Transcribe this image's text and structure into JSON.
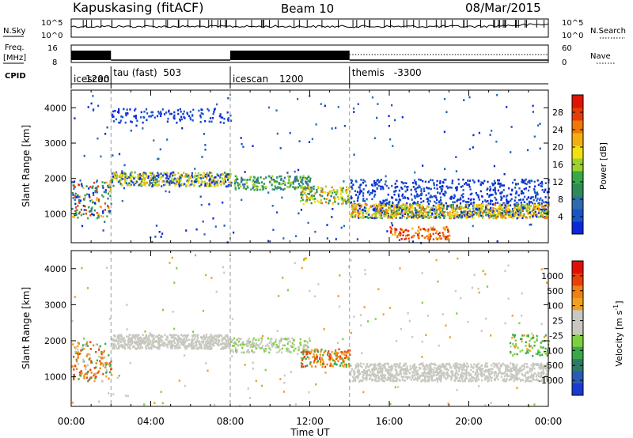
{
  "header": {
    "station": "Kapuskasing (fitACF)",
    "beam": "Beam 10",
    "date": "08/Mar/2015"
  },
  "strips": {
    "nsky_label": "N.Sky",
    "nsky_ticks": [
      "10^5",
      "10^0"
    ],
    "nsearch_label": "N.Search",
    "nsearch_ticks": [
      "10^5",
      "10^0"
    ],
    "freq_label": "Freq.",
    "freq_unit": "[MHz]",
    "freq_ticks": [
      "16",
      "8"
    ],
    "nave_label": "Nave",
    "nave_ticks": [
      "60",
      "0"
    ],
    "cpid_label": "CPID"
  },
  "cpid_segments": [
    {
      "name": "icescan",
      "value": "1200",
      "start_hour": 0.0
    },
    {
      "name": "tau (fast)",
      "value": "503",
      "start_hour": 2.0
    },
    {
      "name": "icescan",
      "value": "1200",
      "start_hour": 8.0
    },
    {
      "name": "themis",
      "value": "-3300",
      "start_hour": 14.0
    }
  ],
  "chart_data": [
    {
      "type": "heatmap",
      "title": "Power",
      "ylabel": "Slant Range [km]",
      "xlabel": "Time UT",
      "x_ticks": [
        "00:00",
        "04:00",
        "08:00",
        "12:00",
        "16:00",
        "20:00",
        "00:00"
      ],
      "xlim_hours": [
        0,
        24
      ],
      "y_ticks": [
        1000,
        2000,
        3000,
        4000
      ],
      "ylim": [
        180,
        4500
      ],
      "colorbar": {
        "label": "Power [dB]",
        "ticks": [
          4,
          8,
          12,
          16,
          20,
          24,
          28
        ],
        "colors": [
          "#0a28d8",
          "#1a55c8",
          "#2f6cab",
          "#2e8a56",
          "#38a848",
          "#9ed22a",
          "#f2e011",
          "#f2b010",
          "#f07808",
          "#e63c06",
          "#e01404"
        ]
      }
    },
    {
      "type": "heatmap",
      "title": "Velocity",
      "ylabel": "Slant Range [km]",
      "xlabel": "Time UT",
      "x_ticks": [
        "00:00",
        "04:00",
        "08:00",
        "12:00",
        "16:00",
        "20:00",
        "00:00"
      ],
      "xlim_hours": [
        0,
        24
      ],
      "y_ticks": [
        1000,
        2000,
        3000,
        4000
      ],
      "ylim": [
        180,
        4500
      ],
      "colorbar": {
        "label": "Velocity [m s",
        "label_sup": "-1",
        "label_end": "]",
        "ticks": [
          "1000",
          "500",
          "100",
          "25",
          "-25",
          "-100",
          "-500",
          "-1000"
        ],
        "colors": [
          "#1a3ad0",
          "#2a5ab8",
          "#2f7a66",
          "#3aa848",
          "#7fd040",
          "#c8c8c0",
          "#c8c8c0",
          "#f0a020",
          "#f08010",
          "#e84008",
          "#e01008"
        ]
      }
    }
  ]
}
